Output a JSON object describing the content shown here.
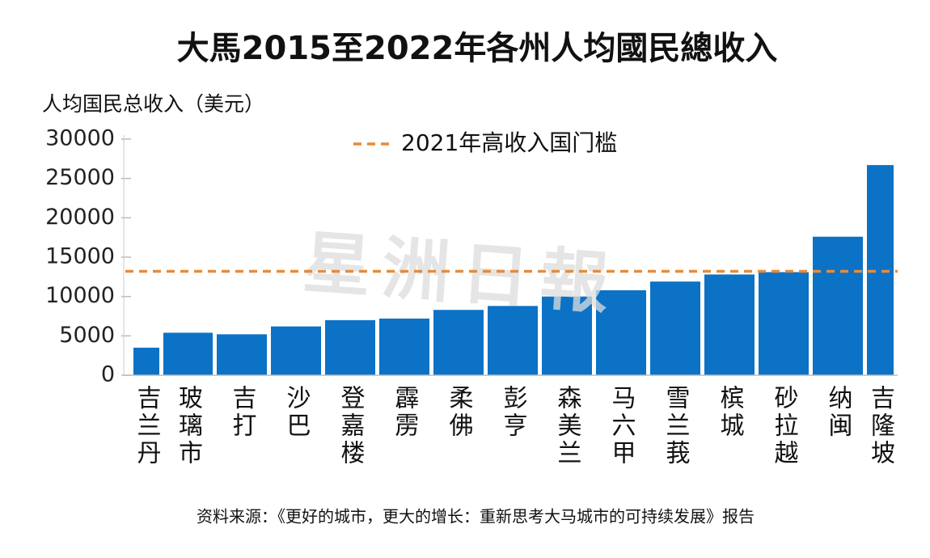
{
  "chart_data": {
    "type": "bar",
    "title": "大馬2015至2022年各州人均國民總收入",
    "y_label": "人均国民总收入（美元）",
    "categories": [
      "吉兰丹",
      "玻璃市",
      "吉打",
      "沙巴",
      "登嘉楼",
      "霹雳",
      "柔佛",
      "彭亨",
      "森美兰",
      "马六甲",
      "雪兰莪",
      "槟城",
      "砂拉越",
      "纳闽",
      "吉隆坡"
    ],
    "values": [
      3500,
      5400,
      5200,
      6200,
      7000,
      7200,
      8300,
      8800,
      10000,
      10800,
      11900,
      12800,
      13100,
      17600,
      26700
    ],
    "color": "#0b72c6",
    "ylim": [
      0,
      30000
    ],
    "yticks": [
      0,
      5000,
      10000,
      15000,
      20000,
      25000,
      30000
    ],
    "threshold": {
      "name": "2021年高收入国门槛",
      "value": 13200,
      "color": "#e88b3a"
    },
    "watermark": "星洲日報",
    "source": "资料来源：《更好的城市，更大的增长：重新思考大马城市的可持续发展》报告"
  }
}
